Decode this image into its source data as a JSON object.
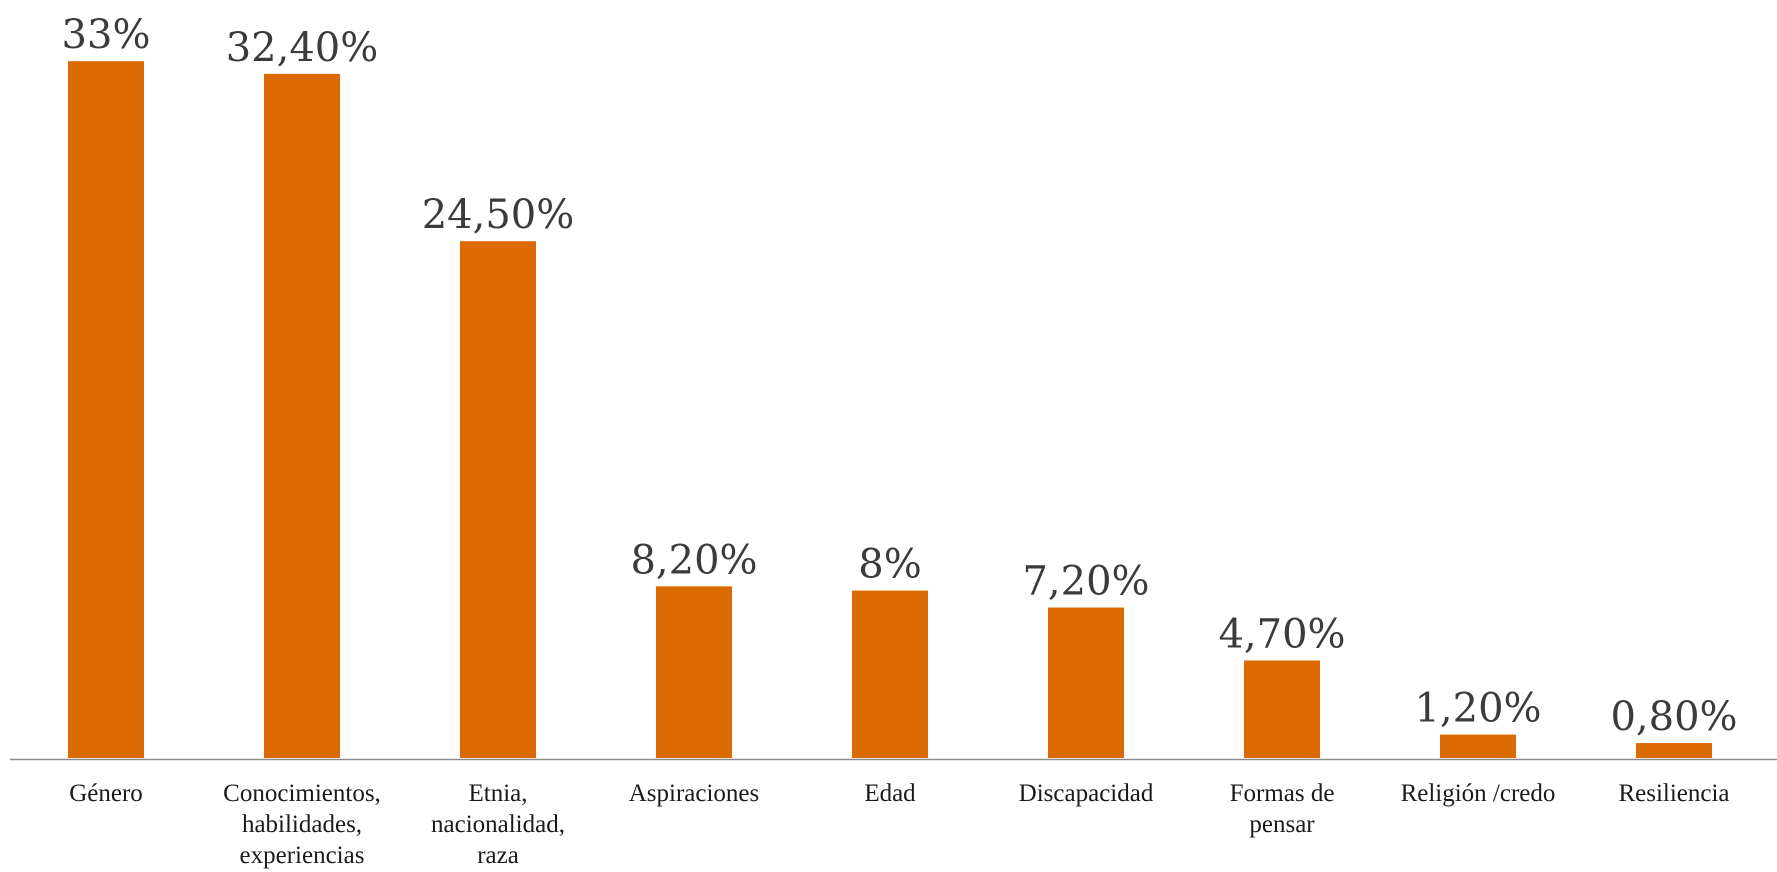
{
  "colors": {
    "bar": "#dd6a00",
    "axis": "#8c8c8c"
  },
  "chart_data": {
    "type": "bar",
    "title": "",
    "xlabel": "",
    "ylabel": "",
    "ylim": [
      0,
      34
    ],
    "grid": false,
    "legend": "none",
    "categories": [
      [
        "Género"
      ],
      [
        "Conocimientos,",
        "habilidades,",
        "experiencias"
      ],
      [
        "Etnia,",
        "nacionalidad,",
        "raza"
      ],
      [
        "Aspiraciones"
      ],
      [
        "Edad"
      ],
      [
        "Discapacidad"
      ],
      [
        "Formas de",
        "pensar"
      ],
      [
        "Religión /credo"
      ],
      [
        "Resiliencia"
      ]
    ],
    "values": [
      33,
      32.4,
      24.5,
      8.2,
      8,
      7.2,
      4.7,
      1.2,
      0.8
    ],
    "data_labels": [
      "33%",
      "32,40%",
      "24,50%",
      "8,20%",
      "8%",
      "7,20%",
      "4,70%",
      "1,20%",
      "0,80%"
    ]
  }
}
